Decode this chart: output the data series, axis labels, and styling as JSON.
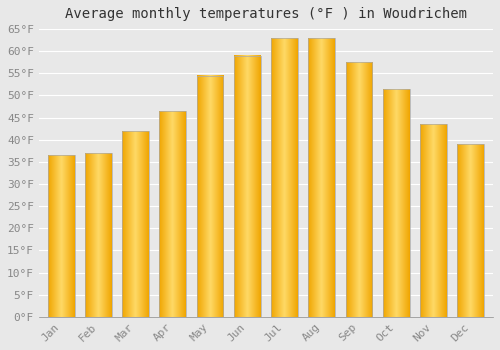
{
  "title": "Average monthly temperatures (°F ) in Woudrichem",
  "months": [
    "Jan",
    "Feb",
    "Mar",
    "Apr",
    "May",
    "Jun",
    "Jul",
    "Aug",
    "Sep",
    "Oct",
    "Nov",
    "Dec"
  ],
  "values": [
    36.5,
    37.0,
    42.0,
    46.5,
    54.5,
    59.0,
    63.0,
    63.0,
    57.5,
    51.5,
    43.5,
    39.0
  ],
  "bar_color_center": "#FFD966",
  "bar_color_edge": "#F0A500",
  "bar_border_color": "#AAAAAA",
  "ylim": [
    0,
    65
  ],
  "yticks": [
    0,
    5,
    10,
    15,
    20,
    25,
    30,
    35,
    40,
    45,
    50,
    55,
    60,
    65
  ],
  "ytick_labels": [
    "0°F",
    "5°F",
    "10°F",
    "15°F",
    "20°F",
    "25°F",
    "30°F",
    "35°F",
    "40°F",
    "45°F",
    "50°F",
    "55°F",
    "60°F",
    "65°F"
  ],
  "background_color": "#e8e8e8",
  "grid_color": "#ffffff",
  "title_fontsize": 10,
  "tick_fontsize": 8,
  "font_family": "monospace",
  "bar_width": 0.72
}
